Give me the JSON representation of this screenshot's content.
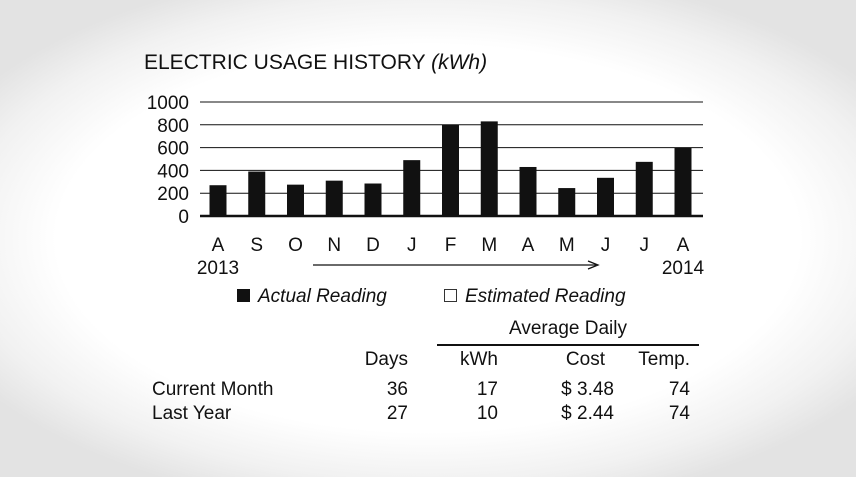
{
  "title": {
    "main": "ELECTRIC USAGE HISTORY",
    "unit": "(kWh)"
  },
  "chart_data": {
    "type": "bar",
    "title": "ELECTRIC USAGE HISTORY (kWh)",
    "categories": [
      "A",
      "S",
      "O",
      "N",
      "D",
      "J",
      "F",
      "M",
      "A",
      "M",
      "J",
      "J",
      "A"
    ],
    "values": [
      270,
      390,
      275,
      310,
      285,
      490,
      800,
      830,
      430,
      245,
      335,
      475,
      600
    ],
    "ylim": [
      0,
      1000
    ],
    "yticks": [
      "1000",
      "800",
      "600",
      "400",
      "200",
      "0"
    ],
    "start_year": "2013",
    "end_year": "2014",
    "grid": true,
    "bar_color": "#111111"
  },
  "legend": {
    "actual": "Actual Reading",
    "estimated": "Estimated Reading"
  },
  "table": {
    "group_header": "Average Daily",
    "columns": [
      "Days",
      "kWh",
      "Cost",
      "Temp."
    ],
    "rows": [
      {
        "label": "Current Month",
        "days": "36",
        "kwh": "17",
        "cost": "$ 3.48",
        "temp": "74"
      },
      {
        "label": "Last Year",
        "days": "27",
        "kwh": "10",
        "cost": "$ 2.44",
        "temp": "74"
      }
    ]
  }
}
